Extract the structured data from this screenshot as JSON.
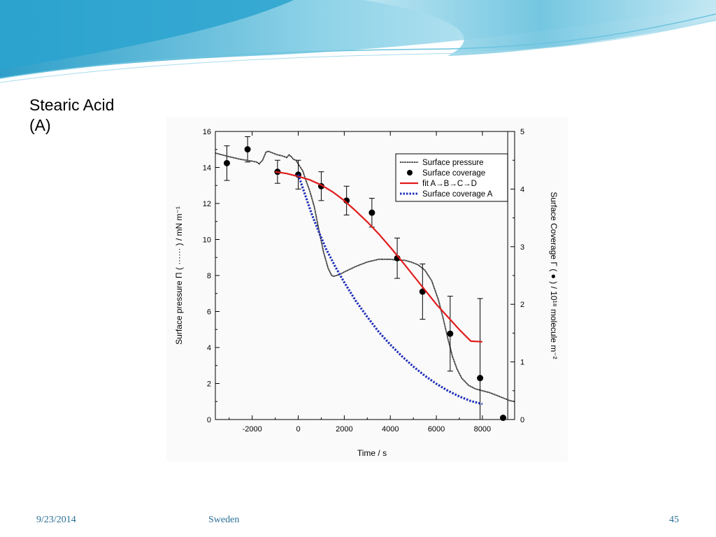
{
  "slide": {
    "title_line1": "Stearic Acid",
    "title_line2": "(A)",
    "footer_date": "9/23/2014",
    "footer_place": "Sweden",
    "page_number": "45",
    "colors": {
      "banner_dark": "#3aa9cf",
      "banner_light": "#bfe6f2",
      "footer": "#2a6f96"
    }
  },
  "chart_data": {
    "type": "line",
    "xlabel": "Time / s",
    "ylabel_left": "Surface pressure Π ( ······ ) / mN m⁻¹",
    "ylabel_right": "Surface Coverage Γ ( ● ) / 10¹⁸ molecule m⁻²",
    "xlim": [
      -3600,
      9400
    ],
    "ylim_left": [
      0,
      16
    ],
    "ylim_right": [
      0,
      5
    ],
    "x_ticks": [
      -2000,
      0,
      2000,
      4000,
      6000,
      8000
    ],
    "x_tick_labels": [
      "-2000",
      "0",
      "2000",
      "4000",
      "6000",
      "8000"
    ],
    "y_left_ticks": [
      0,
      2,
      4,
      6,
      8,
      10,
      12,
      14,
      16
    ],
    "y_left_tick_labels": [
      "0",
      "2",
      "4",
      "6",
      "8",
      "10",
      "12",
      "14",
      "16"
    ],
    "y_right_ticks": [
      0,
      1,
      2,
      3,
      4,
      5
    ],
    "y_right_tick_labels": [
      "0",
      "1",
      "2",
      "3",
      "4",
      "5"
    ],
    "legend_position": "top-right",
    "grid": false,
    "series": [
      {
        "name": "Surface pressure",
        "axis": "left",
        "style": "dotted-dense",
        "color": "#000000",
        "x": [
          -3600,
          -3000,
          -2500,
          -2000,
          -1800,
          -1700,
          -1550,
          -1400,
          -1300,
          -1100,
          -900,
          -700,
          -500,
          -400,
          -300,
          -200,
          -100,
          0,
          100,
          200,
          300,
          500,
          700,
          900,
          1100,
          1300,
          1450,
          1550,
          1650,
          1800,
          2000,
          2500,
          3000,
          3500,
          4000,
          4300,
          4600,
          4900,
          5200,
          5500,
          5800,
          6100,
          6300,
          6500,
          6700,
          6900,
          7100,
          7400,
          7700,
          8000,
          8300,
          8600,
          8900,
          9200,
          9400
        ],
        "y": [
          14.8,
          14.6,
          14.45,
          14.35,
          14.3,
          14.2,
          14.4,
          14.85,
          14.9,
          14.8,
          14.7,
          14.65,
          14.55,
          14.7,
          14.6,
          14.45,
          14.4,
          14.2,
          14.0,
          13.8,
          13.4,
          12.7,
          11.8,
          10.5,
          9.3,
          8.4,
          8.0,
          7.95,
          8.0,
          8.05,
          8.2,
          8.5,
          8.75,
          8.9,
          8.9,
          8.85,
          8.85,
          8.75,
          8.6,
          8.3,
          7.7,
          6.6,
          5.6,
          4.5,
          3.5,
          2.8,
          2.3,
          1.9,
          1.7,
          1.6,
          1.5,
          1.35,
          1.2,
          1.05,
          1.0
        ]
      },
      {
        "name": "Surface coverage",
        "axis": "right",
        "style": "points",
        "color": "#000000",
        "x": [
          -3100,
          -2200,
          -900,
          0,
          1000,
          2100,
          3200,
          4300,
          5400,
          6600,
          7900,
          8900
        ],
        "y": [
          4.45,
          4.69,
          4.3,
          4.25,
          4.05,
          3.8,
          3.59,
          2.8,
          2.22,
          1.49,
          0.72,
          0.03
        ],
        "err": [
          0.3,
          0.22,
          0.2,
          0.25,
          0.25,
          0.25,
          0.25,
          0.35,
          0.48,
          0.65,
          1.38,
          0.0
        ]
      },
      {
        "name": "fit A→B→C→D",
        "axis": "right",
        "style": "solid",
        "color": "#e01b1b",
        "x": [
          -1000,
          -500,
          0,
          500,
          1000,
          1500,
          2000,
          2500,
          3000,
          3500,
          4000,
          4500,
          5000,
          5500,
          6000,
          6500,
          7000,
          7500,
          8000
        ],
        "y": [
          4.3,
          4.27,
          4.22,
          4.16,
          4.07,
          3.95,
          3.8,
          3.62,
          3.43,
          3.22,
          2.99,
          2.75,
          2.5,
          2.25,
          2.0,
          1.78,
          1.56,
          1.36,
          1.35
        ]
      },
      {
        "name": "Surface coverage A",
        "axis": "right",
        "style": "dotted-thick",
        "color": "#1f2fb8",
        "x": [
          0,
          300,
          600,
          900,
          1200,
          1600,
          2000,
          2500,
          3000,
          3500,
          4000,
          4500,
          5000,
          5500,
          6000,
          6500,
          7000,
          7500,
          8000
        ],
        "y": [
          4.25,
          3.9,
          3.55,
          3.25,
          2.97,
          2.66,
          2.38,
          2.06,
          1.78,
          1.52,
          1.3,
          1.1,
          0.92,
          0.76,
          0.62,
          0.5,
          0.4,
          0.32,
          0.27
        ]
      }
    ]
  }
}
